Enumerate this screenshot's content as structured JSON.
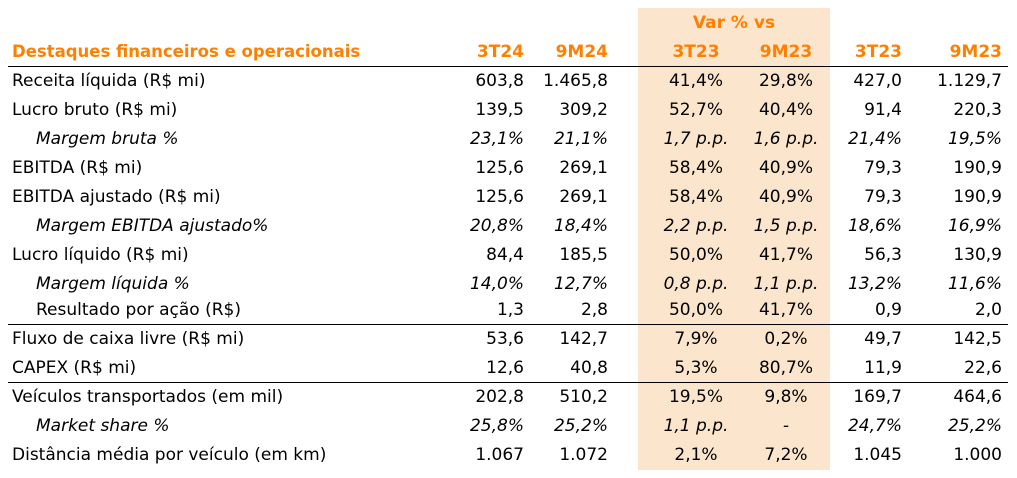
{
  "header": {
    "title": "Destaques financeiros e operacionais",
    "var_group": "Var % vs",
    "columns": [
      "3T24",
      "9M24",
      "3T23",
      "9M23",
      "3T23",
      "9M23"
    ]
  },
  "rows": [
    {
      "label": "Receita líquida (R$ mi)",
      "values": [
        "603,8",
        "1.465,8",
        "41,4%",
        "29,8%",
        "427,0",
        "1.129,7"
      ]
    },
    {
      "label": "Lucro bruto (R$ mi)",
      "values": [
        "139,5",
        "309,2",
        "52,7%",
        "40,4%",
        "91,4",
        "220,3"
      ]
    },
    {
      "label": "Margem bruta %",
      "values": [
        "23,1%",
        "21,1%",
        "1,7 p.p.",
        "1,6 p.p.",
        "21,4%",
        "19,5%"
      ]
    },
    {
      "label": "EBITDA (R$ mi)",
      "values": [
        "125,6",
        "269,1",
        "58,4%",
        "40,9%",
        "79,3",
        "190,9"
      ]
    },
    {
      "label": "EBITDA ajustado (R$ mi)",
      "values": [
        "125,6",
        "269,1",
        "58,4%",
        "40,9%",
        "79,3",
        "190,9"
      ]
    },
    {
      "label": "Margem EBITDA ajustado%",
      "values": [
        "20,8%",
        "18,4%",
        "2,2 p.p.",
        "1,5 p.p.",
        "18,6%",
        "16,9%"
      ]
    },
    {
      "label": "Lucro líquido (R$ mi)",
      "values": [
        "84,4",
        "185,5",
        "50,0%",
        "41,7%",
        "56,3",
        "130,9"
      ]
    },
    {
      "label": "Margem líquida %",
      "values": [
        "14,0%",
        "12,7%",
        "0,8 p.p.",
        "1,1 p.p.",
        "13,2%",
        "11,6%"
      ]
    },
    {
      "label": "Resultado por ação (R$)",
      "values": [
        "1,3",
        "2,8",
        "50,0%",
        "41,7%",
        "0,9",
        "2,0"
      ]
    },
    {
      "label": "Fluxo de caixa livre (R$ mi)",
      "values": [
        "53,6",
        "142,7",
        "7,9%",
        "0,2%",
        "49,7",
        "142,5"
      ]
    },
    {
      "label": "CAPEX (R$ mi)",
      "values": [
        "12,6",
        "40,8",
        "5,3%",
        "80,7%",
        "11,9",
        "22,6"
      ]
    },
    {
      "label": "Veículos transportados (em mil)",
      "values": [
        "202,8",
        "510,2",
        "19,5%",
        "9,8%",
        "169,7",
        "464,6"
      ]
    },
    {
      "label": "Market share %",
      "values": [
        "25,8%",
        "25,2%",
        "1,1 p.p.",
        "-",
        "24,7%",
        "25,2%"
      ]
    },
    {
      "label": "Distância média por veículo (em km)",
      "values": [
        "1.067",
        "1.072",
        "2,1%",
        "7,2%",
        "1.045",
        "1.000"
      ]
    }
  ],
  "colors": {
    "accent": "#ff8000",
    "var_shade": "#fbe5cc"
  }
}
